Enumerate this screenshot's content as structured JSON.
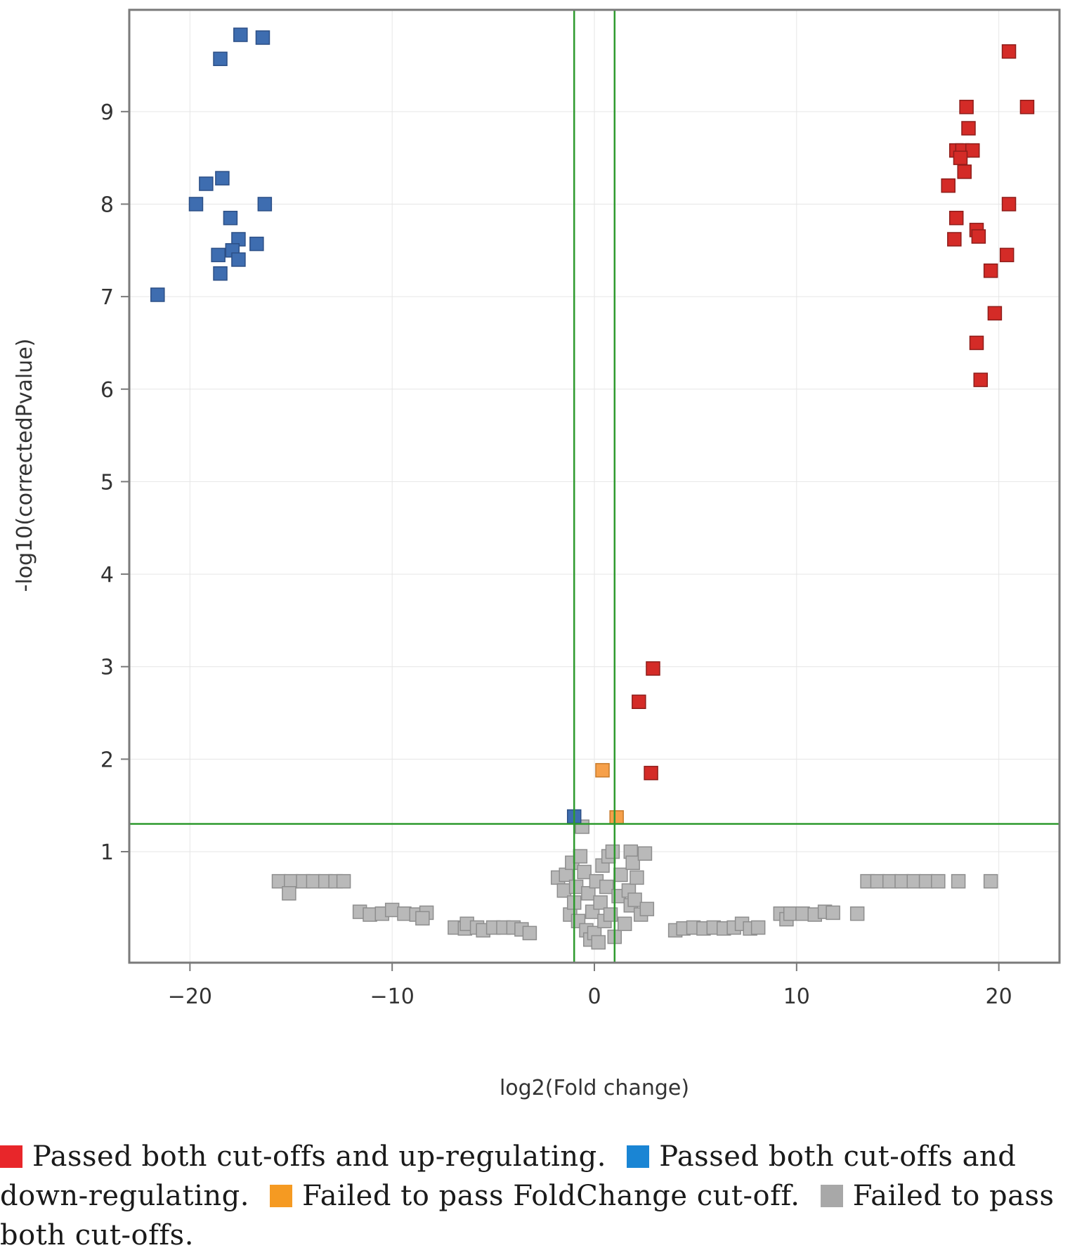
{
  "chart_data": {
    "type": "scatter",
    "title": "",
    "xlabel": "log2(Fold change)",
    "ylabel": "-log10(correctedPvalue)",
    "xlim": [
      -23,
      23
    ],
    "ylim": [
      -0.2,
      10.1
    ],
    "xticks": [
      -20,
      -10,
      0,
      10,
      20
    ],
    "yticks": [
      1,
      2,
      3,
      4,
      5,
      6,
      7,
      8,
      9
    ],
    "grid": true,
    "marker": "square",
    "cutoff_lines": {
      "fold_change": [
        -1,
        1
      ],
      "pvalue": 1.3
    },
    "series": [
      {
        "key": "up",
        "color": "#d42b27",
        "points": [
          [
            20.5,
            9.65
          ],
          [
            21.4,
            9.05
          ],
          [
            18.4,
            9.05
          ],
          [
            18.5,
            8.82
          ],
          [
            17.9,
            8.58
          ],
          [
            18.2,
            8.58
          ],
          [
            18.7,
            8.58
          ],
          [
            18.1,
            8.5
          ],
          [
            18.3,
            8.35
          ],
          [
            17.5,
            8.2
          ],
          [
            20.5,
            8.0
          ],
          [
            17.9,
            7.85
          ],
          [
            18.9,
            7.72
          ],
          [
            19.0,
            7.65
          ],
          [
            17.8,
            7.62
          ],
          [
            20.4,
            7.45
          ],
          [
            19.6,
            7.28
          ],
          [
            19.8,
            6.82
          ],
          [
            18.9,
            6.5
          ],
          [
            19.1,
            6.1
          ],
          [
            2.9,
            2.98
          ],
          [
            2.2,
            2.62
          ],
          [
            2.8,
            1.85
          ]
        ]
      },
      {
        "key": "down",
        "color": "#3e6db0",
        "points": [
          [
            -17.5,
            9.83
          ],
          [
            -16.4,
            9.8
          ],
          [
            -18.5,
            9.57
          ],
          [
            -18.4,
            8.28
          ],
          [
            -19.2,
            8.22
          ],
          [
            -19.7,
            8.0
          ],
          [
            -16.3,
            8.0
          ],
          [
            -18.0,
            7.85
          ],
          [
            -17.6,
            7.62
          ],
          [
            -16.7,
            7.57
          ],
          [
            -17.9,
            7.5
          ],
          [
            -18.6,
            7.45
          ],
          [
            -17.6,
            7.4
          ],
          [
            -18.5,
            7.25
          ],
          [
            -21.6,
            7.02
          ],
          [
            -1.0,
            1.38
          ]
        ]
      },
      {
        "key": "foldchange_fail",
        "color": "#f6a04a",
        "points": [
          [
            0.4,
            1.88
          ],
          [
            1.1,
            1.37
          ]
        ]
      },
      {
        "key": "both_fail",
        "color": "#b9b9b9",
        "points": [
          [
            -15.6,
            0.68
          ],
          [
            -15.0,
            0.68
          ],
          [
            -14.4,
            0.68
          ],
          [
            -13.9,
            0.68
          ],
          [
            -13.3,
            0.68
          ],
          [
            -12.8,
            0.68
          ],
          [
            -12.4,
            0.68
          ],
          [
            -15.1,
            0.55
          ],
          [
            -11.6,
            0.35
          ],
          [
            -11.1,
            0.32
          ],
          [
            -10.5,
            0.33
          ],
          [
            -10.0,
            0.37
          ],
          [
            -9.4,
            0.33
          ],
          [
            -8.8,
            0.32
          ],
          [
            -8.3,
            0.34
          ],
          [
            -8.5,
            0.28
          ],
          [
            -6.9,
            0.18
          ],
          [
            -6.4,
            0.17
          ],
          [
            -6.3,
            0.22
          ],
          [
            -5.8,
            0.18
          ],
          [
            -5.5,
            0.15
          ],
          [
            -5.0,
            0.18
          ],
          [
            -4.5,
            0.18
          ],
          [
            -4.0,
            0.18
          ],
          [
            -3.6,
            0.16
          ],
          [
            -3.2,
            0.12
          ],
          [
            -1.8,
            0.72
          ],
          [
            -1.5,
            0.58
          ],
          [
            -1.4,
            0.75
          ],
          [
            -1.2,
            0.32
          ],
          [
            -1.1,
            0.88
          ],
          [
            -1.0,
            0.45
          ],
          [
            -0.9,
            0.62
          ],
          [
            -0.8,
            0.25
          ],
          [
            -0.7,
            0.95
          ],
          [
            -0.6,
            1.27
          ],
          [
            -0.5,
            0.78
          ],
          [
            -0.4,
            0.15
          ],
          [
            -0.3,
            0.55
          ],
          [
            -0.2,
            0.05
          ],
          [
            -0.1,
            0.35
          ],
          [
            0.0,
            0.12
          ],
          [
            0.1,
            0.68
          ],
          [
            0.2,
            0.02
          ],
          [
            0.3,
            0.45
          ],
          [
            0.4,
            0.85
          ],
          [
            0.5,
            0.25
          ],
          [
            0.6,
            0.62
          ],
          [
            0.7,
            0.95
          ],
          [
            0.8,
            0.32
          ],
          [
            0.9,
            1.0
          ],
          [
            1.0,
            0.08
          ],
          [
            1.2,
            0.52
          ],
          [
            1.3,
            0.75
          ],
          [
            1.5,
            0.22
          ],
          [
            1.7,
            0.58
          ],
          [
            1.8,
            0.42
          ],
          [
            1.8,
            1.0
          ],
          [
            1.9,
            0.88
          ],
          [
            2.1,
            0.72
          ],
          [
            2.0,
            0.48
          ],
          [
            2.3,
            0.32
          ],
          [
            2.5,
            0.98
          ],
          [
            2.6,
            0.38
          ],
          [
            4.0,
            0.15
          ],
          [
            4.4,
            0.17
          ],
          [
            4.9,
            0.18
          ],
          [
            5.4,
            0.17
          ],
          [
            5.9,
            0.18
          ],
          [
            6.4,
            0.17
          ],
          [
            6.9,
            0.18
          ],
          [
            7.3,
            0.22
          ],
          [
            7.7,
            0.17
          ],
          [
            8.1,
            0.18
          ],
          [
            9.2,
            0.33
          ],
          [
            9.5,
            0.27
          ],
          [
            9.7,
            0.33
          ],
          [
            10.3,
            0.33
          ],
          [
            10.9,
            0.32
          ],
          [
            11.4,
            0.35
          ],
          [
            11.8,
            0.34
          ],
          [
            13.0,
            0.33
          ],
          [
            13.5,
            0.68
          ],
          [
            14.0,
            0.68
          ],
          [
            14.6,
            0.68
          ],
          [
            15.2,
            0.68
          ],
          [
            15.8,
            0.68
          ],
          [
            16.4,
            0.68
          ],
          [
            17.0,
            0.68
          ],
          [
            18.0,
            0.68
          ],
          [
            19.6,
            0.68
          ]
        ]
      }
    ]
  },
  "legend": {
    "items": [
      {
        "key": "up",
        "color": "#e8262a",
        "text": "Passed both cut-offs and up-regulating."
      },
      {
        "key": "down",
        "color": "#1a85d4",
        "text": "Passed both cut-offs and down-regulating."
      },
      {
        "key": "foldchange_fail",
        "color": "#f59a22",
        "text": "Failed to pass FoldChange cut-off."
      },
      {
        "key": "both_fail",
        "color": "#a8a8a8",
        "text": "Failed to pass both cut-offs."
      }
    ]
  }
}
